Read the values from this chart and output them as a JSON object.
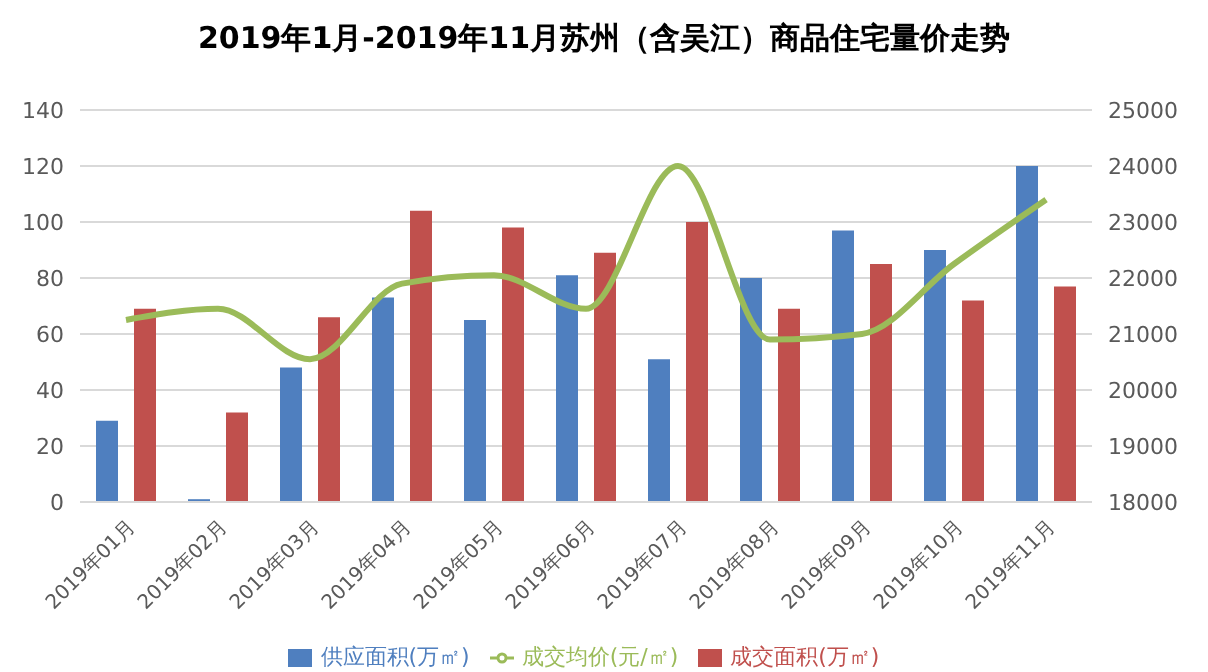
{
  "chart_data": {
    "type": "bar",
    "title": "2019年1月-2019年11月苏州（含吴江）商品住宅量价走势",
    "categories": [
      "2019年01月",
      "2019年02月",
      "2019年03月",
      "2019年04月",
      "2019年05月",
      "2019年06月",
      "2019年07月",
      "2019年08月",
      "2019年09月",
      "2019年10月",
      "2019年11月"
    ],
    "series": [
      {
        "name": "供应面积(万㎡)",
        "color": "#4f7fbf",
        "values": [
          29,
          1,
          48,
          73,
          65,
          81,
          51,
          80,
          97,
          90,
          120
        ]
      },
      {
        "name": "成交面积(万㎡)",
        "color": "#c0504d",
        "values": [
          69,
          32,
          66,
          104,
          98,
          89,
          100,
          69,
          85,
          72,
          77
        ]
      },
      {
        "name": "成交均价(元/㎡)",
        "type": "line",
        "axis": "y2",
        "color": "#9bbb59",
        "values": [
          21250,
          21450,
          20550,
          21900,
          22050,
          21450,
          24000,
          20900,
          21000,
          22250,
          23400
        ]
      }
    ],
    "ylim": [
      0,
      140
    ],
    "yticks": [
      0,
      20,
      40,
      60,
      80,
      100,
      120,
      140
    ],
    "y2lim": [
      18000,
      25000
    ],
    "y2ticks": [
      18000,
      19000,
      20000,
      21000,
      22000,
      23000,
      24000,
      25000
    ],
    "grid": "y",
    "legend": "bottom",
    "marker": "none"
  }
}
